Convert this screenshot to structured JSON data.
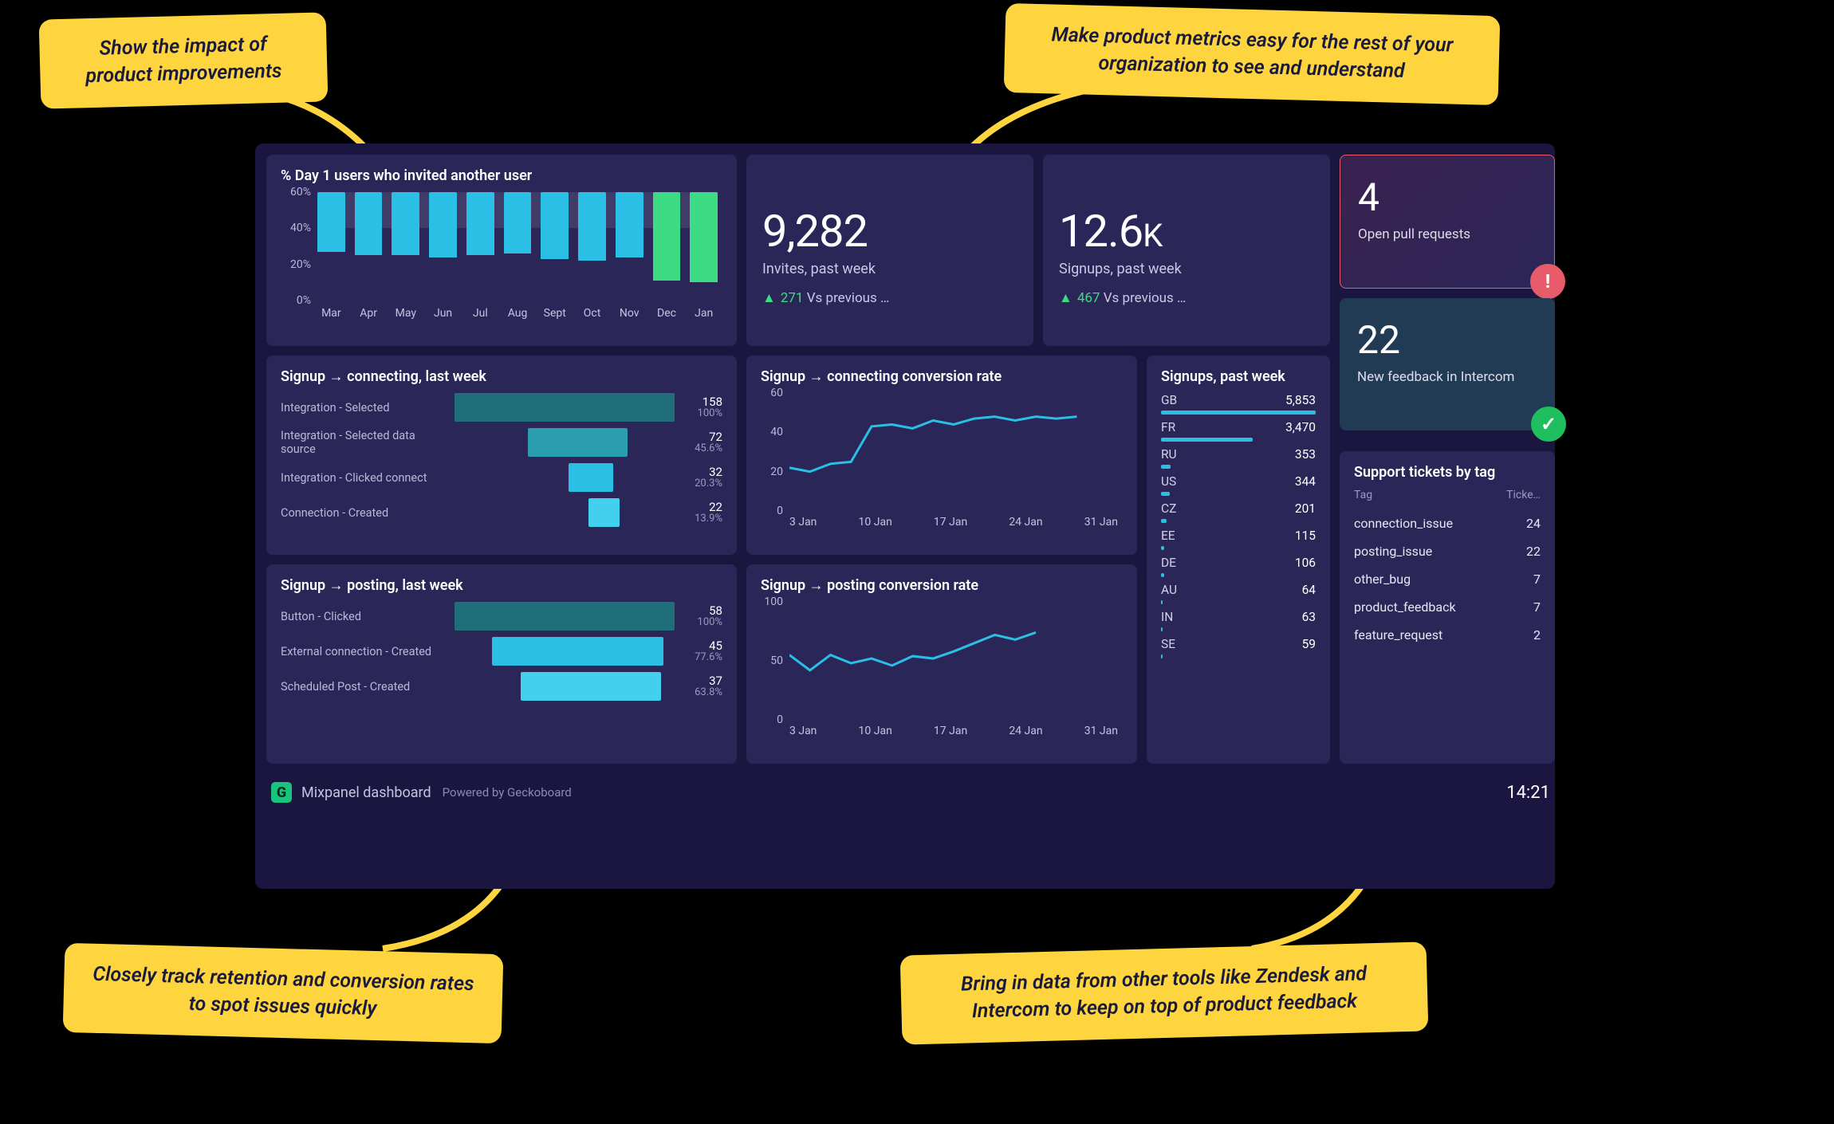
{
  "callouts": {
    "top_left": "Show the impact of product improvements",
    "top_right": "Make product metrics easy for the rest of your organization to see and understand",
    "bottom_left": "Closely track retention and conversion rates to spot issues quickly",
    "bottom_right": "Bring in data from other tools like Zendesk and Intercom to keep on top of product feedback"
  },
  "colors": {
    "page_bg": "#000000",
    "dashboard_bg": "#1a1640",
    "card_bg": "#2b2658",
    "callout_bg": "#ffd53f",
    "callout_text": "#1a1a3a",
    "text_primary": "#ffffff",
    "text_secondary": "#c8c8e4",
    "text_muted": "#9a9ac0",
    "line_blue": "#2bbfe6",
    "bar_blue": "#2bbfe6",
    "bar_green": "#3ddc84",
    "funnel_teal_1": "#1f6f7a",
    "funnel_teal_2": "#2a9db0",
    "funnel_teal_3": "#2bbfe6",
    "funnel_teal_4": "#43cfee",
    "status_warn_border": "#e85b6b",
    "status_warn_bg_from": "#3a2250",
    "status_warn_bg_to": "#2b2658",
    "status_ok_bg": "#223b55",
    "badge_warn": "#e85b6b",
    "badge_ok": "#1fbf5f",
    "delta_up": "#3ddc84"
  },
  "bar_chart": {
    "type": "bar",
    "title": "% Day 1 users who invited another user",
    "categories": [
      "Mar",
      "Apr",
      "May",
      "Jun",
      "Jul",
      "Aug",
      "Sept",
      "Oct",
      "Nov",
      "Dec",
      "Jan"
    ],
    "values": [
      33,
      35,
      35,
      36,
      35,
      34,
      37,
      38,
      36,
      49,
      50
    ],
    "bar_colors": [
      "#2bbfe6",
      "#2bbfe6",
      "#2bbfe6",
      "#2bbfe6",
      "#2bbfe6",
      "#2bbfe6",
      "#2bbfe6",
      "#2bbfe6",
      "#2bbfe6",
      "#3ddc84",
      "#3ddc84"
    ],
    "y_ticks": [
      0,
      20,
      40,
      60
    ],
    "y_tick_labels": [
      "0%",
      "20%",
      "40%",
      "60%"
    ],
    "ylim": [
      0,
      60
    ],
    "goal_band": [
      40,
      60
    ],
    "background_color": "#2b2658"
  },
  "bignums": {
    "invites": {
      "value": "9,282",
      "label": "Invites, past week",
      "delta_num": "271",
      "delta_text": "Vs previous …"
    },
    "signups": {
      "value": "12.6",
      "suffix": "K",
      "label": "Signups, past week",
      "delta_num": "467",
      "delta_text": "Vs previous …"
    }
  },
  "status": {
    "pulls": {
      "value": "4",
      "label": "Open pull requests",
      "variant": "warn"
    },
    "feedback": {
      "value": "22",
      "label": "New feedback in Intercom",
      "variant": "ok"
    }
  },
  "funnel1": {
    "title": "Signup → connecting, last week",
    "max": 158,
    "steps": [
      {
        "label": "Integration - Selected",
        "n": 158,
        "pct": "100%",
        "color": "#1f6f7a"
      },
      {
        "label": "Integration - Selected data source",
        "n": 72,
        "pct": "45.6%",
        "color": "#2a9db0"
      },
      {
        "label": "Integration - Clicked connect",
        "n": 32,
        "pct": "20.3%",
        "color": "#2bbfe6"
      },
      {
        "label": "Connection - Created",
        "n": 22,
        "pct": "13.9%",
        "color": "#43cfee"
      }
    ]
  },
  "funnel2": {
    "title": "Signup → posting, last week",
    "max": 58,
    "steps": [
      {
        "label": "Button - Clicked",
        "n": 58,
        "pct": "100%",
        "color": "#1f6f7a"
      },
      {
        "label": "External connection - Created",
        "n": 45,
        "pct": "77.6%",
        "color": "#2bbfe6"
      },
      {
        "label": "Scheduled Post - Created",
        "n": 37,
        "pct": "63.8%",
        "color": "#43cfee"
      }
    ]
  },
  "line1": {
    "type": "line",
    "title": "Signup → connecting conversion rate",
    "y_ticks": [
      0,
      20,
      40,
      60
    ],
    "ylim": [
      0,
      60
    ],
    "x_labels": [
      "3 Jan",
      "10 Jan",
      "17 Jan",
      "24 Jan",
      "31 Jan"
    ],
    "points": [
      [
        0,
        22
      ],
      [
        3,
        20
      ],
      [
        6,
        24
      ],
      [
        9,
        25
      ],
      [
        12,
        43
      ],
      [
        15,
        44
      ],
      [
        18,
        42
      ],
      [
        21,
        46
      ],
      [
        24,
        44
      ],
      [
        27,
        47
      ],
      [
        30,
        48
      ],
      [
        33,
        46
      ],
      [
        36,
        48
      ],
      [
        39,
        47
      ],
      [
        42,
        48
      ]
    ],
    "x_range": [
      0,
      48
    ],
    "line_color": "#2bbfe6",
    "line_width": 3
  },
  "line2": {
    "type": "line",
    "title": "Signup → posting conversion rate",
    "y_ticks": [
      0,
      50,
      100
    ],
    "ylim": [
      0,
      100
    ],
    "x_labels": [
      "3 Jan",
      "10 Jan",
      "17 Jan",
      "24 Jan",
      "31 Jan"
    ],
    "points": [
      [
        0,
        55
      ],
      [
        3,
        42
      ],
      [
        6,
        55
      ],
      [
        9,
        48
      ],
      [
        12,
        52
      ],
      [
        15,
        46
      ],
      [
        18,
        54
      ],
      [
        21,
        52
      ],
      [
        24,
        58
      ],
      [
        27,
        65
      ],
      [
        30,
        72
      ],
      [
        33,
        68
      ],
      [
        36,
        74
      ]
    ],
    "x_range": [
      0,
      48
    ],
    "line_color": "#2bbfe6",
    "line_width": 3
  },
  "countries": {
    "title": "Signups, past week",
    "max": 5853,
    "rows": [
      {
        "cc": "GB",
        "v": "5,853",
        "n": 5853
      },
      {
        "cc": "FR",
        "v": "3,470",
        "n": 3470
      },
      {
        "cc": "RU",
        "v": "353",
        "n": 353
      },
      {
        "cc": "US",
        "v": "344",
        "n": 344
      },
      {
        "cc": "CZ",
        "v": "201",
        "n": 201
      },
      {
        "cc": "EE",
        "v": "115",
        "n": 115
      },
      {
        "cc": "DE",
        "v": "106",
        "n": 106
      },
      {
        "cc": "AU",
        "v": "64",
        "n": 64
      },
      {
        "cc": "IN",
        "v": "63",
        "n": 63
      },
      {
        "cc": "SE",
        "v": "59",
        "n": 59
      }
    ]
  },
  "support": {
    "title": "Support tickets by tag",
    "col1": "Tag",
    "col2": "Ticke…",
    "rows": [
      {
        "tag": "connection_issue",
        "n": 24
      },
      {
        "tag": "posting_issue",
        "n": 22
      },
      {
        "tag": "other_bug",
        "n": 7
      },
      {
        "tag": "product_feedback",
        "n": 7
      },
      {
        "tag": "feature_request",
        "n": 2
      }
    ]
  },
  "footer": {
    "title": "Mixpanel dashboard",
    "powered": "Powered by Geckoboard",
    "clock": "14:21"
  }
}
